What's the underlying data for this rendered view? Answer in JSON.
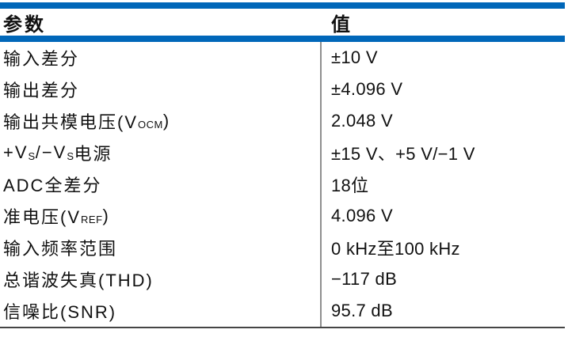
{
  "table": {
    "header": {
      "param": "参数",
      "value": "值"
    },
    "rows": [
      {
        "param": [
          {
            "t": "输入差分"
          }
        ],
        "value": [
          {
            "t": "±10 V"
          }
        ]
      },
      {
        "param": [
          {
            "t": "输出差分"
          }
        ],
        "value": [
          {
            "t": "±4.096 V"
          }
        ]
      },
      {
        "param": [
          {
            "t": "输出共模电压(V"
          },
          {
            "s": "OCM"
          },
          {
            "t": ")"
          }
        ],
        "value": [
          {
            "t": "2.048 V"
          }
        ]
      },
      {
        "param": [
          {
            "t": "+V"
          },
          {
            "s": "S"
          },
          {
            "t": "/−V"
          },
          {
            "s": "S"
          },
          {
            "t": "电源"
          }
        ],
        "value": [
          {
            "t": "±15 V、+5 V/−1 V"
          }
        ]
      },
      {
        "param": [
          {
            "t": "ADC全差分"
          }
        ],
        "value": [
          {
            "t": "18位"
          }
        ]
      },
      {
        "param": [
          {
            "t": "准电压(V"
          },
          {
            "s": "REF"
          },
          {
            "t": ")"
          }
        ],
        "value": [
          {
            "t": "4.096 V"
          }
        ]
      },
      {
        "param": [
          {
            "t": "输入频率范围"
          }
        ],
        "value": [
          {
            "t": "0 kHz至100 kHz"
          }
        ]
      },
      {
        "param": [
          {
            "t": "总谐波失真(THD)"
          }
        ],
        "value": [
          {
            "t": "−117 dB"
          }
        ]
      },
      {
        "param": [
          {
            "t": "信噪比(SNR)"
          }
        ],
        "value": [
          {
            "t": "95.7 dB"
          }
        ]
      }
    ],
    "colors": {
      "accent_blue": "#0067b9",
      "divider_gray": "#8f8f8f",
      "bottom_border": "#454545",
      "text": "#111111"
    }
  }
}
